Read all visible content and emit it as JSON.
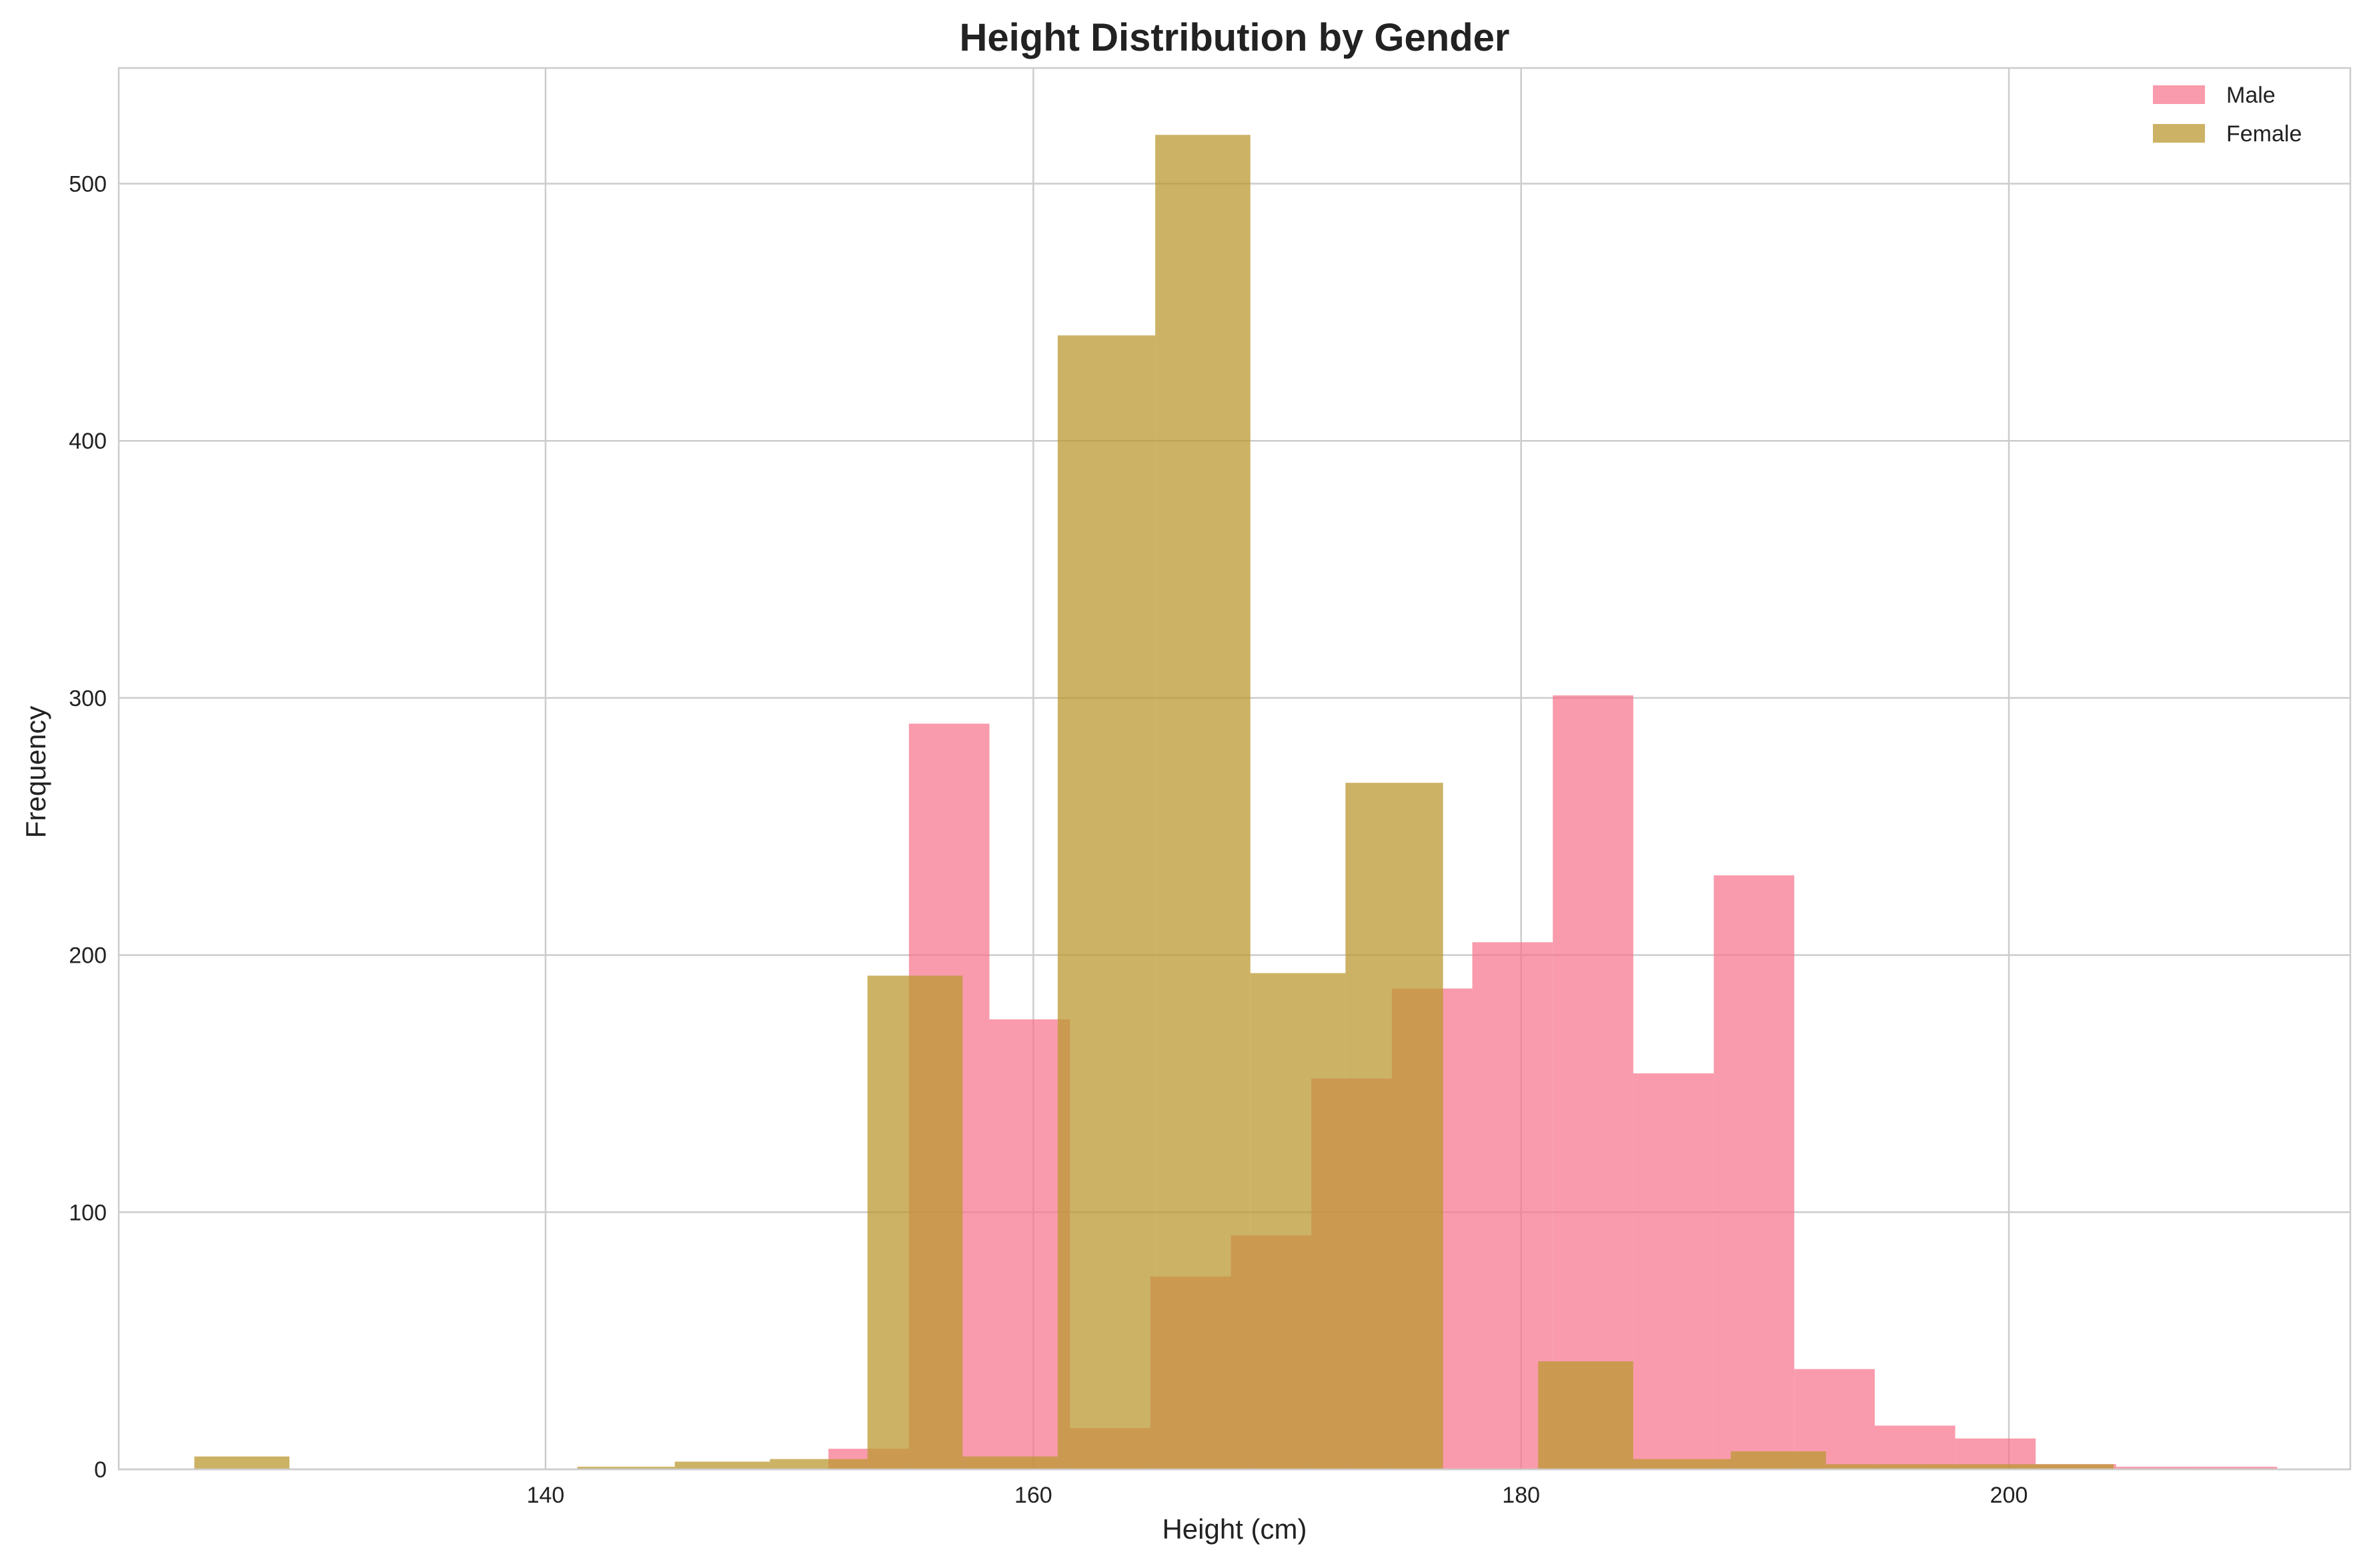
{
  "chart_data": {
    "type": "bar",
    "title": "Height Distribution by Gender",
    "xlabel": "Height (cm)",
    "ylabel": "Frequency",
    "xlim": [
      122.5,
      214.0
    ],
    "ylim": [
      0,
      545
    ],
    "xticks": [
      140,
      160,
      180,
      200
    ],
    "yticks": [
      0,
      100,
      200,
      300,
      400,
      500
    ],
    "grid": true,
    "legend_position": "top-right",
    "series": [
      {
        "name": "Male",
        "color": "#f77189",
        "opacity": 0.7,
        "bins": [
          {
            "x0": 151.6,
            "x1": 154.9,
            "value": 8
          },
          {
            "x0": 154.9,
            "x1": 158.2,
            "value": 290
          },
          {
            "x0": 158.2,
            "x1": 161.5,
            "value": 175
          },
          {
            "x0": 161.5,
            "x1": 164.8,
            "value": 16
          },
          {
            "x0": 164.8,
            "x1": 168.1,
            "value": 75
          },
          {
            "x0": 168.1,
            "x1": 171.4,
            "value": 91
          },
          {
            "x0": 171.4,
            "x1": 174.7,
            "value": 152
          },
          {
            "x0": 174.7,
            "x1": 178.0,
            "value": 187
          },
          {
            "x0": 178.0,
            "x1": 181.3,
            "value": 205
          },
          {
            "x0": 181.3,
            "x1": 184.6,
            "value": 301
          },
          {
            "x0": 184.6,
            "x1": 187.9,
            "value": 154
          },
          {
            "x0": 187.9,
            "x1": 191.2,
            "value": 231
          },
          {
            "x0": 191.2,
            "x1": 194.5,
            "value": 39
          },
          {
            "x0": 194.5,
            "x1": 197.8,
            "value": 17
          },
          {
            "x0": 197.8,
            "x1": 201.1,
            "value": 12
          },
          {
            "x0": 201.1,
            "x1": 204.4,
            "value": 2
          },
          {
            "x0": 204.4,
            "x1": 207.7,
            "value": 1
          },
          {
            "x0": 207.7,
            "x1": 211.0,
            "value": 1
          }
        ]
      },
      {
        "name": "Female",
        "color": "#bb9832",
        "opacity": 0.75,
        "bins": [
          {
            "x0": 125.6,
            "x1": 129.5,
            "value": 5
          },
          {
            "x0": 129.5,
            "x1": 133.5,
            "value": 0
          },
          {
            "x0": 133.5,
            "x1": 137.4,
            "value": 0
          },
          {
            "x0": 137.4,
            "x1": 141.3,
            "value": 0
          },
          {
            "x0": 141.3,
            "x1": 145.3,
            "value": 1
          },
          {
            "x0": 145.3,
            "x1": 149.2,
            "value": 3
          },
          {
            "x0": 149.2,
            "x1": 153.2,
            "value": 4
          },
          {
            "x0": 153.2,
            "x1": 157.1,
            "value": 192
          },
          {
            "x0": 157.1,
            "x1": 161.0,
            "value": 5
          },
          {
            "x0": 161.0,
            "x1": 165.0,
            "value": 441
          },
          {
            "x0": 165.0,
            "x1": 168.9,
            "value": 519
          },
          {
            "x0": 168.9,
            "x1": 172.8,
            "value": 193
          },
          {
            "x0": 172.8,
            "x1": 176.8,
            "value": 267
          },
          {
            "x0": 176.8,
            "x1": 180.7,
            "value": 0
          },
          {
            "x0": 180.7,
            "x1": 184.6,
            "value": 42
          },
          {
            "x0": 184.6,
            "x1": 188.6,
            "value": 4
          },
          {
            "x0": 188.6,
            "x1": 192.5,
            "value": 7
          },
          {
            "x0": 192.5,
            "x1": 196.5,
            "value": 2
          },
          {
            "x0": 196.5,
            "x1": 200.4,
            "value": 2
          },
          {
            "x0": 200.4,
            "x1": 204.3,
            "value": 2
          }
        ]
      }
    ]
  }
}
